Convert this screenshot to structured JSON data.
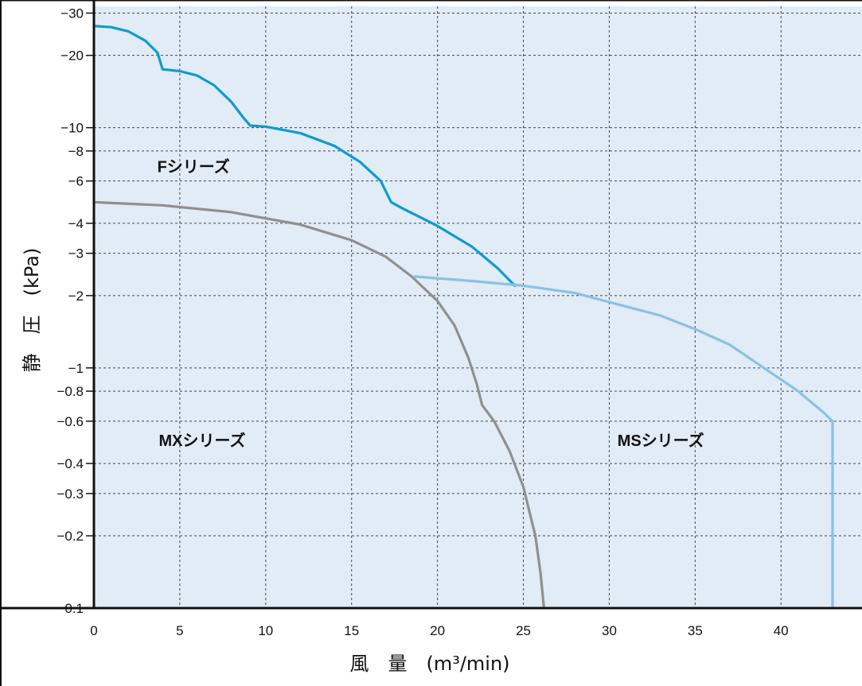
{
  "chart_data": {
    "type": "line",
    "xlabel": "風　量　(m³/min)",
    "ylabel": "静　圧　(kPa)",
    "xlim": [
      0,
      44
    ],
    "ylim": [
      -0.1,
      -32
    ],
    "yscale": "log",
    "grid": true,
    "background": "#e1ecf7",
    "x_ticks": [
      0,
      5,
      10,
      15,
      20,
      25,
      30,
      35,
      40
    ],
    "x_tick_labels": [
      "0",
      "5",
      "10",
      "15",
      "20",
      "25",
      "30",
      "35",
      "40"
    ],
    "y_ticks": [
      -0.1,
      -0.2,
      -0.3,
      -0.4,
      -0.6,
      -0.8,
      -1,
      -2,
      -3,
      -4,
      -6,
      -8,
      -10,
      -20,
      -30
    ],
    "y_tick_labels": [
      "−0.1",
      "−0.2",
      "−0.3",
      "−0.4",
      "−0.6",
      "−0.8",
      "−1",
      "−2",
      "−3",
      "−4",
      "−6",
      "−8",
      "−10",
      "−20",
      "−30"
    ],
    "series": [
      {
        "name": "Fシリーズ",
        "color": "#0e9bd0",
        "points": [
          [
            0,
            -26.5
          ],
          [
            1,
            -26.2
          ],
          [
            2,
            -25.2
          ],
          [
            3,
            -23.0
          ],
          [
            3.7,
            -20.5
          ],
          [
            4.0,
            -17.5
          ],
          [
            5.0,
            -17.2
          ],
          [
            6.0,
            -16.5
          ],
          [
            7.0,
            -15.0
          ],
          [
            8.0,
            -12.8
          ],
          [
            8.7,
            -11.0
          ],
          [
            9.1,
            -10.2
          ],
          [
            10.0,
            -10.1
          ],
          [
            12.0,
            -9.5
          ],
          [
            14.0,
            -8.4
          ],
          [
            15.5,
            -7.2
          ],
          [
            16.7,
            -6.0
          ],
          [
            17.3,
            -4.9
          ],
          [
            18.0,
            -4.6
          ],
          [
            20.0,
            -3.9
          ],
          [
            22.0,
            -3.2
          ],
          [
            23.5,
            -2.6
          ],
          [
            24.5,
            -2.2
          ]
        ],
        "label_position": [
          5.8,
          -6.9
        ]
      },
      {
        "name": "MXシリーズ",
        "color": "#909090",
        "points": [
          [
            0,
            -4.9
          ],
          [
            4,
            -4.75
          ],
          [
            8,
            -4.45
          ],
          [
            12,
            -3.95
          ],
          [
            15,
            -3.4
          ],
          [
            17,
            -2.9
          ],
          [
            18.5,
            -2.4
          ],
          [
            20,
            -1.9
          ],
          [
            21,
            -1.5
          ],
          [
            21.8,
            -1.1
          ],
          [
            22.3,
            -0.85
          ],
          [
            22.6,
            -0.7
          ],
          [
            23.3,
            -0.6
          ],
          [
            24.2,
            -0.45
          ],
          [
            25,
            -0.32
          ],
          [
            25.7,
            -0.2
          ],
          [
            26.0,
            -0.14
          ],
          [
            26.2,
            -0.1
          ]
        ],
        "label_position": [
          6.3,
          -0.5
        ]
      },
      {
        "name": "MSシリーズ",
        "color": "#88c2e6",
        "points": [
          [
            18.7,
            -2.4
          ],
          [
            22,
            -2.3
          ],
          [
            25,
            -2.2
          ],
          [
            28,
            -2.05
          ],
          [
            31,
            -1.8
          ],
          [
            33,
            -1.65
          ],
          [
            35,
            -1.45
          ],
          [
            37,
            -1.25
          ],
          [
            39,
            -1.0
          ],
          [
            41,
            -0.8
          ],
          [
            42.5,
            -0.65
          ],
          [
            43,
            -0.6
          ],
          [
            43,
            -0.1
          ]
        ],
        "label_position": [
          33.0,
          -0.5
        ]
      }
    ]
  }
}
